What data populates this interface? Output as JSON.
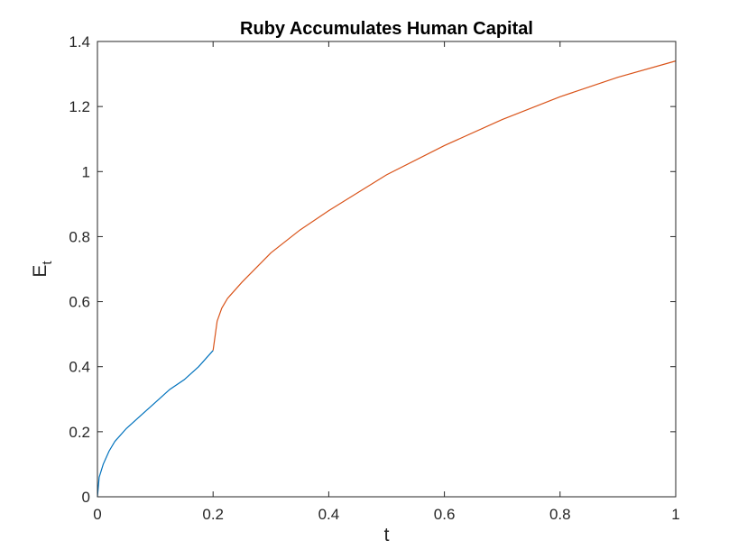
{
  "chart_data": {
    "type": "line",
    "title": "Ruby Accumulates Human Capital",
    "xlabel": "t",
    "ylabel": "E",
    "ylabel_subscript": "t",
    "xlim": [
      0,
      1
    ],
    "ylim": [
      0,
      1.4
    ],
    "xticks": [
      "0",
      "0.2",
      "0.4",
      "0.6",
      "0.8",
      "1"
    ],
    "yticks": [
      "0",
      "0.2",
      "0.4",
      "0.6",
      "0.8",
      "1",
      "1.2",
      "1.4"
    ],
    "grid": false,
    "legend": "none",
    "series": [
      {
        "color": "#0072BD",
        "x": [
          0,
          0.003,
          0.01,
          0.02,
          0.03,
          0.05,
          0.075,
          0.1,
          0.125,
          0.15,
          0.175,
          0.2
        ],
        "y": [
          0,
          0.06,
          0.1,
          0.14,
          0.17,
          0.21,
          0.25,
          0.29,
          0.33,
          0.36,
          0.4,
          0.45
        ]
      },
      {
        "color": "#D95319",
        "x": [
          0.2,
          0.207,
          0.215,
          0.225,
          0.25,
          0.3,
          0.35,
          0.4,
          0.5,
          0.6,
          0.7,
          0.8,
          0.9,
          1.0
        ],
        "y": [
          0.45,
          0.54,
          0.58,
          0.61,
          0.66,
          0.75,
          0.82,
          0.88,
          0.99,
          1.08,
          1.16,
          1.23,
          1.29,
          1.34
        ]
      }
    ]
  }
}
